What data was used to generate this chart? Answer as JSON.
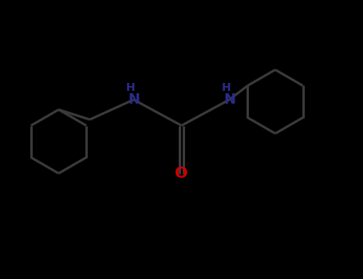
{
  "background_color": "#000000",
  "bond_color": "#3a3a3a",
  "bond_width": 2.2,
  "N_color": "#2B2B8B",
  "O_color": "#CC0000",
  "font_size_N": 13,
  "font_size_H": 10,
  "font_size_O": 14,
  "fig_width": 4.55,
  "fig_height": 3.5,
  "dpi": 100,
  "xlim": [
    0,
    9.1
  ],
  "ylim": [
    0,
    7.0
  ]
}
